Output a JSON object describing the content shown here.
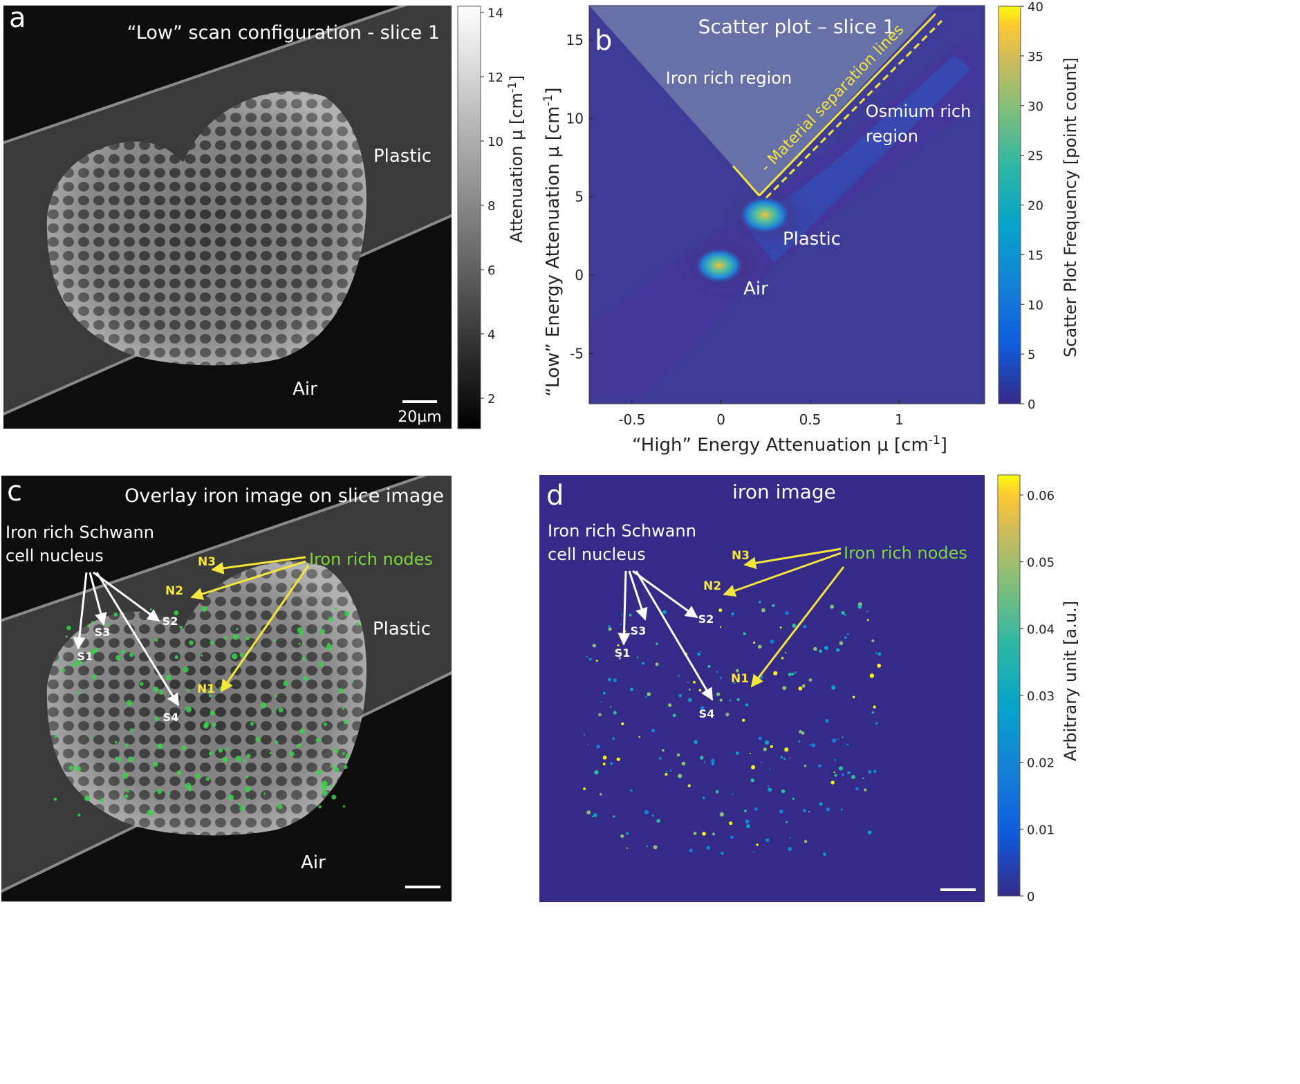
{
  "panel_a": {
    "letter": "a",
    "title": "“Low” scan configuration - slice 1",
    "label_plastic": "Plastic",
    "label_air": "Air",
    "scalebar_label": "20µm",
    "colorbar_ticks": [
      "2",
      "4",
      "6",
      "8",
      "10",
      "12",
      "14"
    ],
    "colorbar_label_main": "Attenuation µ [cm",
    "colorbar_label_sup": "-1",
    "colorbar_label_end": "]"
  },
  "panel_b": {
    "letter": "b",
    "title": "Scatter plot – slice 1",
    "iron_region": "Iron rich region",
    "osmium_region_1": "Osmium rich",
    "osmium_region_2": "region",
    "separation": "- Material separation lines",
    "plastic": "Plastic",
    "air": "Air",
    "x_ticks": [
      "-0.5",
      "0",
      "0.5",
      "1"
    ],
    "y_ticks": [
      "-5",
      "0",
      "5",
      "10",
      "15"
    ],
    "xlabel_main": "“High” Energy Attenuation µ [cm",
    "xlabel_sup": "-1",
    "xlabel_end": "]",
    "ylabel_main": "“Low” Energy Attenuation µ [cm",
    "ylabel_sup": "-1",
    "ylabel_end": "]",
    "colorbar_ticks": [
      "0",
      "5",
      "10",
      "15",
      "20",
      "25",
      "30",
      "35",
      "40"
    ],
    "colorbar_label": "Scatter Plot Frequency [point count]"
  },
  "panel_c": {
    "letter": "c",
    "title": "Overlay iron image on slice image",
    "schwann_1": "Iron rich Schwann",
    "schwann_2": "cell nucleus",
    "nodes": "Iron rich nodes",
    "label_plastic": "Plastic",
    "label_air": "Air",
    "n_labels": [
      "N3",
      "N2",
      "N1"
    ],
    "s_labels": [
      "S1",
      "S2",
      "S3",
      "S4"
    ]
  },
  "panel_d": {
    "letter": "d",
    "title": "iron image",
    "schwann_1": "Iron rich Schwann",
    "schwann_2": "cell nucleus",
    "nodes": "Iron rich nodes",
    "n_labels": [
      "N3",
      "N2",
      "N1"
    ],
    "s_labels": [
      "S1",
      "S2",
      "S3",
      "S4"
    ],
    "colorbar_ticks": [
      "0",
      "0.01",
      "0.02",
      "0.03",
      "0.04",
      "0.05",
      "0.06"
    ],
    "colorbar_label": "Arbitrary unit [a.u.]"
  },
  "colors": {
    "parula_dark": "#352a87",
    "scatter_bg": "#3e3c96",
    "label_yellow": "#f5e63a",
    "nodes_green": "#7fd63c",
    "overlay_green": "#39d24a"
  }
}
